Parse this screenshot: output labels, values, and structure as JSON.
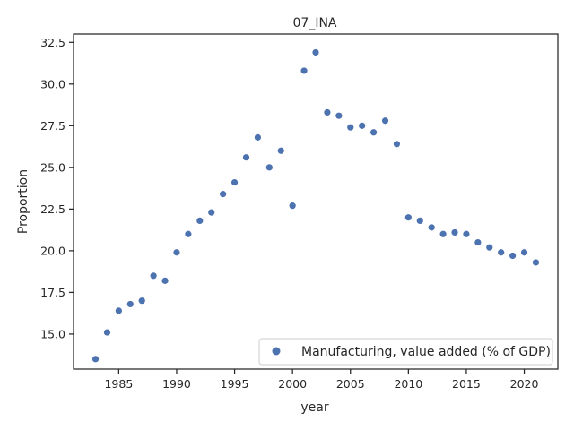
{
  "chart_data": {
    "type": "scatter",
    "title": "07_INA",
    "xlabel": "year",
    "ylabel": "Proportion",
    "xlim": [
      1981.1,
      2022.9
    ],
    "ylim": [
      12.9,
      33.0
    ],
    "xticks": [
      1985,
      1990,
      1995,
      2000,
      2005,
      2010,
      2015,
      2020
    ],
    "yticks": [
      15.0,
      17.5,
      20.0,
      22.5,
      25.0,
      27.5,
      30.0,
      32.5
    ],
    "grid": false,
    "legend_position": "lower-right",
    "series": [
      {
        "name": "Manufacturing, value added (% of GDP)",
        "color": "#4c72b0",
        "points": [
          {
            "x": 1983,
            "y": 13.5
          },
          {
            "x": 1984,
            "y": 15.1
          },
          {
            "x": 1985,
            "y": 16.4
          },
          {
            "x": 1986,
            "y": 16.8
          },
          {
            "x": 1987,
            "y": 17.0
          },
          {
            "x": 1988,
            "y": 18.5
          },
          {
            "x": 1989,
            "y": 18.2
          },
          {
            "x": 1990,
            "y": 19.9
          },
          {
            "x": 1991,
            "y": 21.0
          },
          {
            "x": 1992,
            "y": 21.8
          },
          {
            "x": 1993,
            "y": 22.3
          },
          {
            "x": 1994,
            "y": 23.4
          },
          {
            "x": 1995,
            "y": 24.1
          },
          {
            "x": 1996,
            "y": 25.6
          },
          {
            "x": 1997,
            "y": 26.8
          },
          {
            "x": 1998,
            "y": 25.0
          },
          {
            "x": 1999,
            "y": 26.0
          },
          {
            "x": 2000,
            "y": 22.7
          },
          {
            "x": 2001,
            "y": 30.8
          },
          {
            "x": 2002,
            "y": 31.9
          },
          {
            "x": 2003,
            "y": 28.3
          },
          {
            "x": 2004,
            "y": 28.1
          },
          {
            "x": 2005,
            "y": 27.4
          },
          {
            "x": 2006,
            "y": 27.5
          },
          {
            "x": 2007,
            "y": 27.1
          },
          {
            "x": 2008,
            "y": 27.8
          },
          {
            "x": 2009,
            "y": 26.4
          },
          {
            "x": 2010,
            "y": 22.0
          },
          {
            "x": 2011,
            "y": 21.8
          },
          {
            "x": 2012,
            "y": 21.4
          },
          {
            "x": 2013,
            "y": 21.0
          },
          {
            "x": 2014,
            "y": 21.1
          },
          {
            "x": 2015,
            "y": 21.0
          },
          {
            "x": 2016,
            "y": 20.5
          },
          {
            "x": 2017,
            "y": 20.2
          },
          {
            "x": 2018,
            "y": 19.9
          },
          {
            "x": 2019,
            "y": 19.7
          },
          {
            "x": 2020,
            "y": 19.9
          },
          {
            "x": 2021,
            "y": 19.3
          }
        ]
      }
    ]
  }
}
